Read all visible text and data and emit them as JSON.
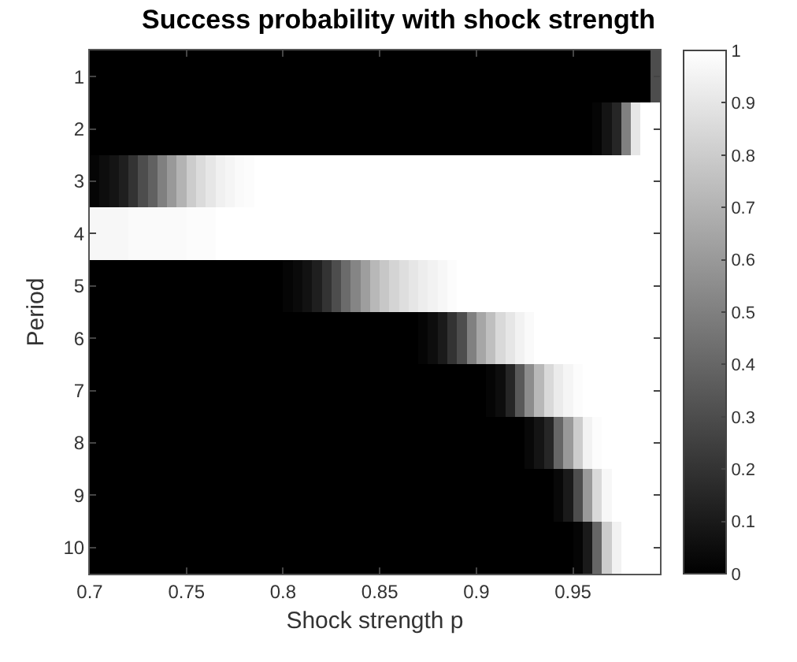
{
  "chart_data": {
    "type": "heatmap",
    "title": "Success probability with shock strength",
    "xlabel": "Shock strength p",
    "ylabel": "Period",
    "x": [
      0.7025,
      0.7075,
      0.7125,
      0.7175,
      0.7225,
      0.7275,
      0.7325,
      0.7375,
      0.7425,
      0.7475,
      0.7525,
      0.7575,
      0.7625,
      0.7675,
      0.7725,
      0.7775,
      0.7825,
      0.7875,
      0.7925,
      0.7975,
      0.8025,
      0.8075,
      0.8125,
      0.8175,
      0.8225,
      0.8275,
      0.8325,
      0.8375,
      0.8425,
      0.8475,
      0.8525,
      0.8575,
      0.8625,
      0.8675,
      0.8725,
      0.8775,
      0.8825,
      0.8875,
      0.8925,
      0.8975,
      0.9025,
      0.9075,
      0.9125,
      0.9175,
      0.9225,
      0.9275,
      0.9325,
      0.9375,
      0.9425,
      0.9475,
      0.9525,
      0.9575,
      0.9625,
      0.9675,
      0.9725,
      0.9775,
      0.9825,
      0.9875,
      0.9925
    ],
    "y_categories": [
      "1",
      "2",
      "3",
      "4",
      "5",
      "6",
      "7",
      "8",
      "9",
      "10"
    ],
    "cells": [
      [
        0,
        0,
        0,
        0,
        0,
        0,
        0,
        0,
        0,
        0,
        0,
        0,
        0,
        0,
        0,
        0,
        0,
        0,
        0,
        0,
        0,
        0,
        0,
        0,
        0,
        0,
        0,
        0,
        0,
        0,
        0,
        0,
        0,
        0,
        0,
        0,
        0,
        0,
        0,
        0,
        0,
        0,
        0,
        0,
        0,
        0,
        0,
        0,
        0,
        0,
        0,
        0,
        0,
        0,
        0,
        0,
        0,
        0,
        0.3
      ],
      [
        0,
        0,
        0,
        0,
        0,
        0,
        0,
        0,
        0,
        0,
        0,
        0,
        0,
        0,
        0,
        0,
        0,
        0,
        0,
        0,
        0,
        0,
        0,
        0,
        0,
        0,
        0,
        0,
        0,
        0,
        0,
        0,
        0,
        0,
        0,
        0,
        0,
        0,
        0,
        0,
        0,
        0,
        0,
        0,
        0,
        0,
        0,
        0,
        0,
        0,
        0,
        0,
        0.02,
        0.08,
        0.15,
        0.5,
        0.9,
        1,
        1
      ],
      [
        0.02,
        0.05,
        0.08,
        0.12,
        0.2,
        0.3,
        0.38,
        0.5,
        0.6,
        0.7,
        0.8,
        0.86,
        0.9,
        0.94,
        0.96,
        0.98,
        0.99,
        1,
        1,
        1,
        1,
        1,
        1,
        1,
        1,
        1,
        1,
        1,
        1,
        1,
        1,
        1,
        1,
        1,
        1,
        1,
        1,
        1,
        1,
        1,
        1,
        1,
        1,
        1,
        1,
        1,
        1,
        1,
        1,
        1,
        1,
        1,
        1,
        1,
        1,
        1,
        1,
        1,
        1
      ],
      [
        0.97,
        0.97,
        0.97,
        0.97,
        0.98,
        0.98,
        0.98,
        0.98,
        0.98,
        0.98,
        0.99,
        0.99,
        0.99,
        1,
        1,
        1,
        1,
        1,
        1,
        1,
        1,
        1,
        1,
        1,
        1,
        1,
        1,
        1,
        1,
        1,
        1,
        1,
        1,
        1,
        1,
        1,
        1,
        1,
        1,
        1,
        1,
        1,
        1,
        1,
        1,
        1,
        1,
        1,
        1,
        1,
        1,
        1,
        1,
        1,
        1,
        1,
        1,
        1,
        1
      ],
      [
        0,
        0,
        0,
        0,
        0,
        0,
        0,
        0,
        0,
        0,
        0,
        0,
        0,
        0,
        0,
        0,
        0,
        0,
        0,
        0,
        0.02,
        0.04,
        0.07,
        0.12,
        0.2,
        0.3,
        0.42,
        0.52,
        0.62,
        0.72,
        0.78,
        0.83,
        0.87,
        0.9,
        0.93,
        0.95,
        0.97,
        0.99,
        1,
        1,
        1,
        1,
        1,
        1,
        1,
        1,
        1,
        1,
        1,
        1,
        1,
        1,
        1,
        1,
        1,
        1,
        1,
        1,
        1
      ],
      [
        0,
        0,
        0,
        0,
        0,
        0,
        0,
        0,
        0,
        0,
        0,
        0,
        0,
        0,
        0,
        0,
        0,
        0,
        0,
        0,
        0,
        0,
        0,
        0,
        0,
        0,
        0,
        0,
        0,
        0,
        0,
        0,
        0,
        0,
        0.02,
        0.05,
        0.1,
        0.2,
        0.3,
        0.5,
        0.65,
        0.75,
        0.85,
        0.9,
        0.95,
        0.98,
        1,
        1,
        1,
        1,
        1,
        1,
        1,
        1,
        1,
        1,
        1,
        1,
        1
      ],
      [
        0,
        0,
        0,
        0,
        0,
        0,
        0,
        0,
        0,
        0,
        0,
        0,
        0,
        0,
        0,
        0,
        0,
        0,
        0,
        0,
        0,
        0,
        0,
        0,
        0,
        0,
        0,
        0,
        0,
        0,
        0,
        0,
        0,
        0,
        0,
        0,
        0,
        0,
        0,
        0,
        0,
        0.02,
        0.05,
        0.15,
        0.35,
        0.55,
        0.72,
        0.85,
        0.92,
        0.96,
        0.99,
        1,
        1,
        1,
        1,
        1,
        1,
        1,
        1
      ],
      [
        0,
        0,
        0,
        0,
        0,
        0,
        0,
        0,
        0,
        0,
        0,
        0,
        0,
        0,
        0,
        0,
        0,
        0,
        0,
        0,
        0,
        0,
        0,
        0,
        0,
        0,
        0,
        0,
        0,
        0,
        0,
        0,
        0,
        0,
        0,
        0,
        0,
        0,
        0,
        0,
        0,
        0,
        0,
        0,
        0,
        0.03,
        0.08,
        0.15,
        0.4,
        0.6,
        0.8,
        0.95,
        0.99,
        1,
        1,
        1,
        1,
        1,
        1
      ],
      [
        0,
        0,
        0,
        0,
        0,
        0,
        0,
        0,
        0,
        0,
        0,
        0,
        0,
        0,
        0,
        0,
        0,
        0,
        0,
        0,
        0,
        0,
        0,
        0,
        0,
        0,
        0,
        0,
        0,
        0,
        0,
        0,
        0,
        0,
        0,
        0,
        0,
        0,
        0,
        0,
        0,
        0,
        0,
        0,
        0,
        0,
        0,
        0,
        0.03,
        0.1,
        0.3,
        0.6,
        0.85,
        0.97,
        1,
        1,
        1,
        1,
        1
      ],
      [
        0,
        0,
        0,
        0,
        0,
        0,
        0,
        0,
        0,
        0,
        0,
        0,
        0,
        0,
        0,
        0,
        0,
        0,
        0,
        0,
        0,
        0,
        0,
        0,
        0,
        0,
        0,
        0,
        0,
        0,
        0,
        0,
        0,
        0,
        0,
        0,
        0,
        0,
        0,
        0,
        0,
        0,
        0,
        0,
        0,
        0,
        0,
        0,
        0,
        0,
        0.02,
        0.1,
        0.4,
        0.8,
        0.95,
        1,
        1,
        1,
        1
      ]
    ],
    "xlim": [
      0.7,
      0.995
    ],
    "xticks": [
      0.7,
      0.75,
      0.8,
      0.85,
      0.9,
      0.95
    ],
    "clim": [
      0,
      1
    ],
    "cticks": [
      0,
      0.1,
      0.2,
      0.3,
      0.4,
      0.5,
      0.6,
      0.7,
      0.8,
      0.9,
      1
    ]
  }
}
